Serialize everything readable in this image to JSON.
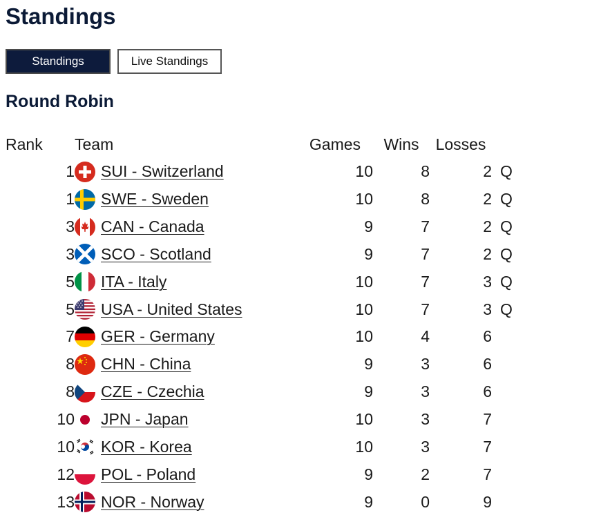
{
  "page": {
    "title": "Standings"
  },
  "tabs": [
    {
      "label": "Standings",
      "active": true
    },
    {
      "label": "Live Standings",
      "active": false
    }
  ],
  "section": {
    "title": "Round Robin"
  },
  "table": {
    "headers": {
      "rank": "Rank",
      "team": "Team",
      "games": "Games",
      "wins": "Wins",
      "losses": "Losses"
    },
    "rows": [
      {
        "rank": "1",
        "flag": "switzerland-flag-icon",
        "team": "SUI - Switzerland",
        "games": "10",
        "wins": "8",
        "losses": "2",
        "q": "Q"
      },
      {
        "rank": "1",
        "flag": "sweden-flag-icon",
        "team": "SWE - Sweden",
        "games": "10",
        "wins": "8",
        "losses": "2",
        "q": "Q"
      },
      {
        "rank": "3",
        "flag": "canada-flag-icon",
        "team": "CAN - Canada",
        "games": "9",
        "wins": "7",
        "losses": "2",
        "q": "Q"
      },
      {
        "rank": "3",
        "flag": "scotland-flag-icon",
        "team": "SCO - Scotland",
        "games": "9",
        "wins": "7",
        "losses": "2",
        "q": "Q"
      },
      {
        "rank": "5",
        "flag": "italy-flag-icon",
        "team": "ITA - Italy",
        "games": "10",
        "wins": "7",
        "losses": "3",
        "q": "Q"
      },
      {
        "rank": "5",
        "flag": "usa-flag-icon",
        "team": "USA - United States",
        "games": "10",
        "wins": "7",
        "losses": "3",
        "q": "Q"
      },
      {
        "rank": "7",
        "flag": "germany-flag-icon",
        "team": "GER - Germany",
        "games": "10",
        "wins": "4",
        "losses": "6",
        "q": ""
      },
      {
        "rank": "8",
        "flag": "china-flag-icon",
        "team": "CHN - China",
        "games": "9",
        "wins": "3",
        "losses": "6",
        "q": ""
      },
      {
        "rank": "8",
        "flag": "czechia-flag-icon",
        "team": "CZE - Czechia",
        "games": "9",
        "wins": "3",
        "losses": "6",
        "q": ""
      },
      {
        "rank": "10",
        "flag": "japan-flag-icon",
        "team": "JPN - Japan",
        "games": "10",
        "wins": "3",
        "losses": "7",
        "q": ""
      },
      {
        "rank": "10",
        "flag": "korea-flag-icon",
        "team": "KOR - Korea",
        "games": "10",
        "wins": "3",
        "losses": "7",
        "q": ""
      },
      {
        "rank": "12",
        "flag": "poland-flag-icon",
        "team": "POL - Poland",
        "games": "9",
        "wins": "2",
        "losses": "7",
        "q": ""
      },
      {
        "rank": "13",
        "flag": "norway-flag-icon",
        "team": "NOR - Norway",
        "games": "9",
        "wins": "0",
        "losses": "9",
        "q": ""
      }
    ]
  },
  "colors": {
    "title": "#0b1a36",
    "tab_active_bg": "#0d1b3c",
    "tab_active_text": "#ffffff",
    "text": "#1a1a1a"
  }
}
